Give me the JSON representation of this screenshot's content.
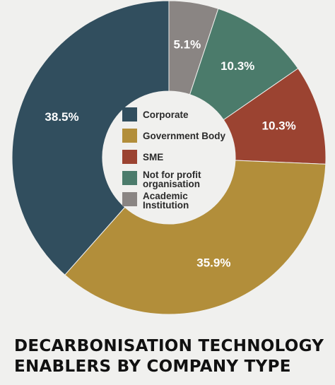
{
  "title_lines": [
    "DECARBONISATION TECHNOLOGY",
    "ENABLERS BY COMPANY TYPE"
  ],
  "chart_data": {
    "type": "pie",
    "donut": true,
    "title": "DECARBONISATION TECHNOLOGY ENABLERS BY COMPANY TYPE",
    "legend_position": "center",
    "start_angle_deg": 0,
    "direction": "clockwise",
    "slices": [
      {
        "name": "Academic Institution",
        "legend_lines": [
          "Academic",
          "Institution"
        ],
        "value": 5.1,
        "label": "5.1%",
        "color": "#8a8583"
      },
      {
        "name": "Not for profit organisation",
        "legend_lines": [
          "Not for profit",
          "organisation"
        ],
        "value": 10.3,
        "label": "10.3%",
        "color": "#4b7b6b"
      },
      {
        "name": "SME",
        "legend_lines": [
          "SME"
        ],
        "value": 10.3,
        "label": "10.3%",
        "color": "#9b4331"
      },
      {
        "name": "Government Body",
        "legend_lines": [
          "Government Body"
        ],
        "value": 35.9,
        "label": "35.9%",
        "color": "#b28e3a"
      },
      {
        "name": "Corporate",
        "legend_lines": [
          "Corporate"
        ],
        "value": 38.5,
        "label": "38.5%",
        "color": "#314e5e"
      }
    ],
    "legend_order": [
      "Corporate",
      "Government Body",
      "SME",
      "Not for profit organisation",
      "Academic Institution"
    ]
  }
}
